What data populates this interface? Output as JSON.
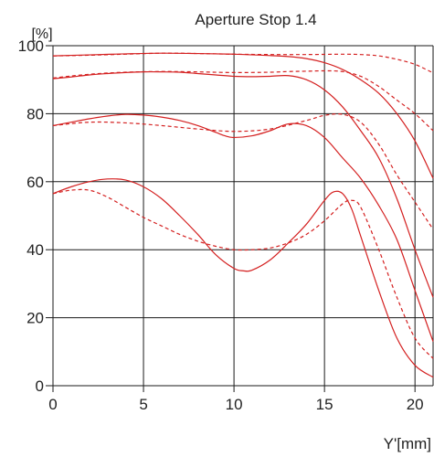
{
  "chart_data": {
    "type": "line",
    "title": "Aperture Stop 1.4",
    "ylabel": "[%]",
    "xlabel": "Y'[mm]",
    "xlim": [
      0,
      21
    ],
    "ylim": [
      0,
      100
    ],
    "xticks": [
      0,
      5,
      10,
      15,
      20
    ],
    "yticks": [
      0,
      20,
      40,
      60,
      80,
      100
    ],
    "grid": true,
    "line_color": "#d42020",
    "series": [
      {
        "style": "solid",
        "x": [
          0,
          2,
          4,
          6,
          8,
          10,
          12,
          13,
          14,
          15,
          16,
          17,
          18,
          19,
          20,
          21
        ],
        "y": [
          97,
          97.3,
          97.6,
          97.8,
          97.7,
          97.5,
          97.1,
          96.8,
          96.2,
          95,
          93,
          90,
          86,
          80,
          72,
          61
        ]
      },
      {
        "style": "dashed",
        "x": [
          0,
          2,
          4,
          6,
          8,
          10,
          12,
          14,
          16,
          17,
          18,
          19,
          20,
          21
        ],
        "y": [
          97,
          97.2,
          97.5,
          97.8,
          97.7,
          97.5,
          97.4,
          97.4,
          97.5,
          97.4,
          97,
          96,
          94.5,
          92
        ]
      },
      {
        "style": "solid",
        "x": [
          0,
          1,
          2,
          3,
          4,
          5,
          6,
          7,
          8,
          9,
          10,
          11,
          12,
          13,
          14,
          15,
          16,
          17,
          18,
          19,
          20,
          21
        ],
        "y": [
          90.3,
          90.8,
          91.4,
          91.8,
          92.1,
          92.3,
          92.3,
          92.2,
          91.8,
          91.4,
          91,
          90.9,
          91,
          91.2,
          90,
          87,
          82,
          75,
          67,
          55,
          40,
          26
        ]
      },
      {
        "style": "dashed",
        "x": [
          0,
          2,
          4,
          6,
          8,
          10,
          12,
          13,
          14,
          15,
          16,
          17,
          18,
          19,
          20,
          21
        ],
        "y": [
          90.5,
          91.6,
          92.2,
          92.4,
          92.3,
          92.1,
          92.2,
          92.4,
          92.5,
          92.6,
          92.4,
          91,
          88,
          84,
          80,
          75
        ]
      },
      {
        "style": "solid",
        "x": [
          0,
          1,
          2,
          3,
          4,
          5,
          6,
          7,
          8,
          9,
          9.5,
          10,
          11,
          12,
          13,
          14,
          15,
          16,
          17,
          18,
          19,
          20,
          21
        ],
        "y": [
          76.5,
          77.5,
          78.5,
          79.3,
          79.8,
          79.6,
          79,
          78,
          76.5,
          74.5,
          73.5,
          73,
          73.5,
          75,
          77,
          76.5,
          73,
          67,
          61,
          53,
          43,
          28,
          13
        ]
      },
      {
        "style": "dashed",
        "x": [
          0,
          2,
          4,
          6,
          8,
          10,
          12,
          14,
          15,
          16,
          17,
          18,
          19,
          20,
          21
        ],
        "y": [
          76.5,
          77.5,
          77.3,
          76.5,
          75.5,
          74.8,
          75.5,
          78,
          79.5,
          79.8,
          77.5,
          71,
          62,
          54,
          46
        ]
      },
      {
        "style": "solid",
        "x": [
          0,
          1,
          2,
          3,
          4,
          5,
          6,
          7,
          8,
          9,
          10,
          10.5,
          11,
          12,
          13,
          14,
          15,
          15.5,
          16,
          16.5,
          17,
          18,
          19,
          20,
          21
        ],
        "y": [
          56.5,
          58.5,
          60,
          60.8,
          60.5,
          58.5,
          55,
          50,
          44.5,
          38.5,
          34.5,
          33.8,
          34,
          37,
          42,
          47.5,
          54.5,
          57,
          56.5,
          52,
          44,
          28,
          14,
          6,
          2.5
        ]
      },
      {
        "style": "dashed",
        "x": [
          0,
          1,
          2,
          3,
          4,
          5,
          6,
          7,
          8,
          9,
          10,
          11,
          12,
          13,
          14,
          15,
          16,
          16.5,
          17,
          18,
          19,
          20,
          21
        ],
        "y": [
          56.5,
          57.5,
          57.5,
          55.5,
          52.5,
          49.5,
          47,
          44.5,
          42.5,
          41,
          40,
          40,
          40.5,
          42,
          44.5,
          48.5,
          53.5,
          54.5,
          52.5,
          40,
          26,
          14,
          8
        ]
      }
    ]
  }
}
